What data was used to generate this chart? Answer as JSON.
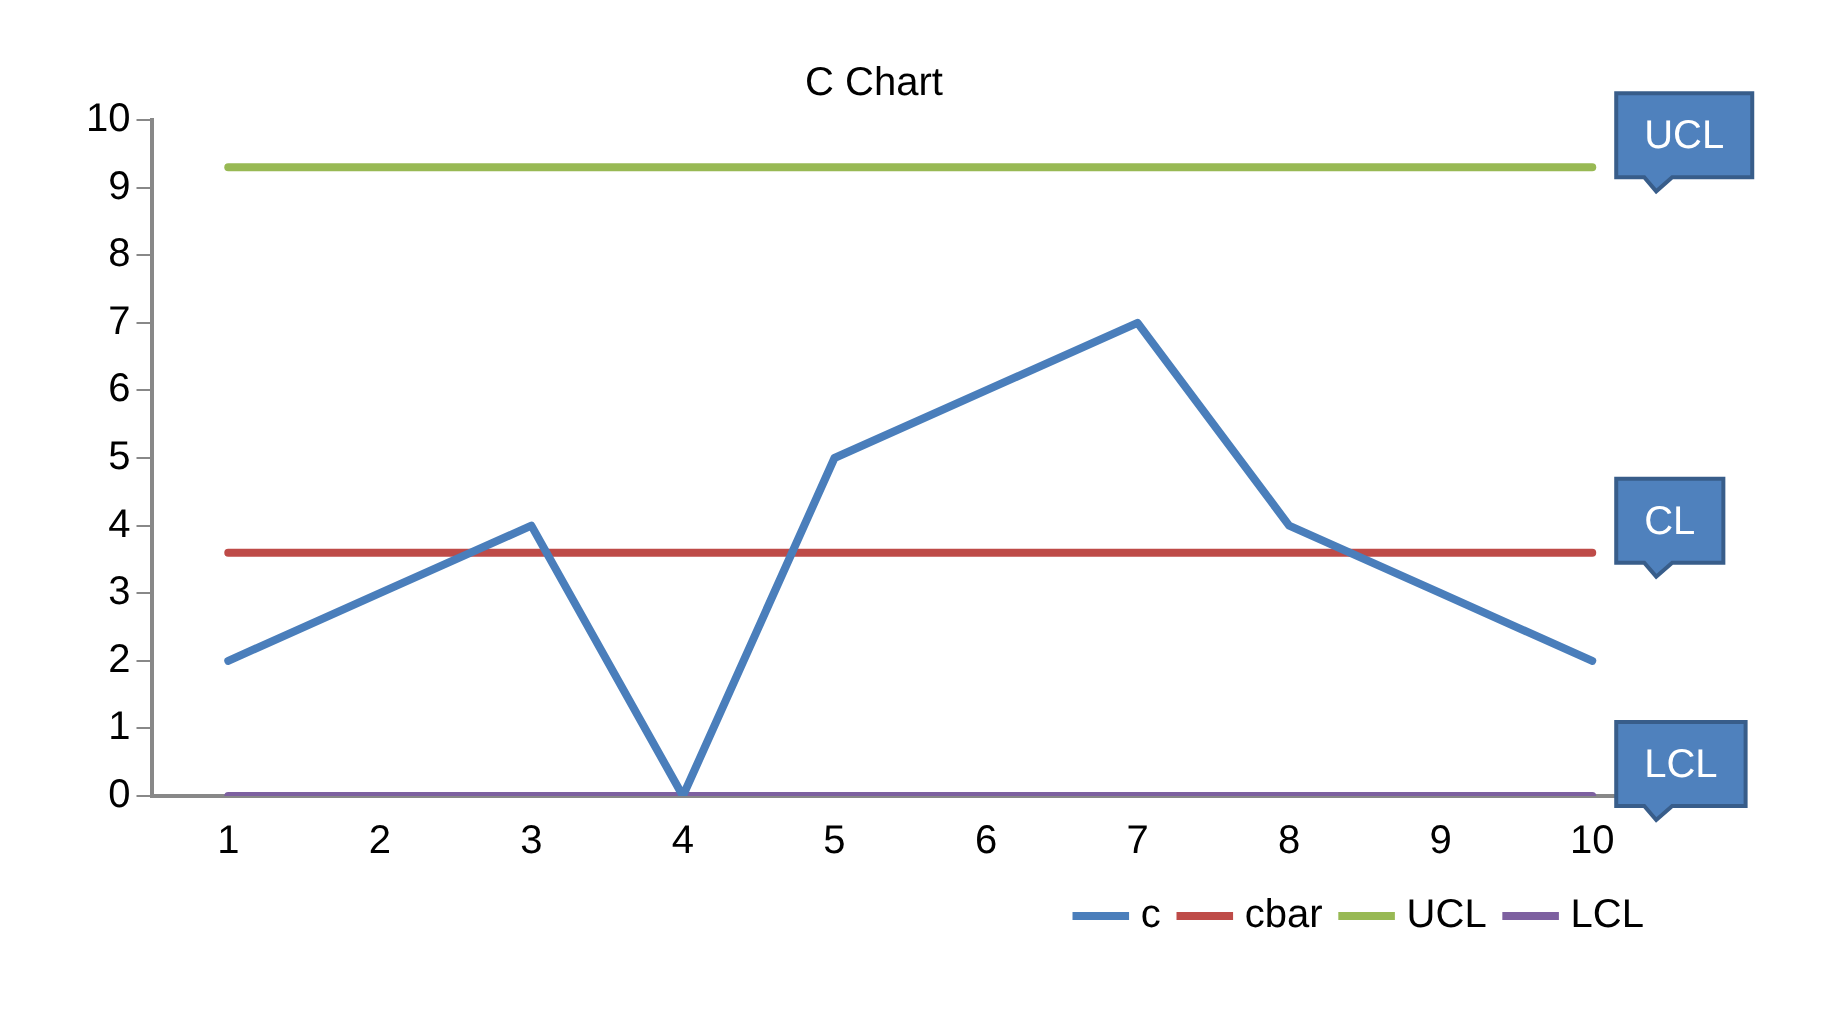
{
  "chart_data": {
    "type": "line",
    "title": "C Chart",
    "categories": [
      "1",
      "2",
      "3",
      "4",
      "5",
      "6",
      "7",
      "8",
      "9",
      "10"
    ],
    "series": [
      {
        "name": "c",
        "color": "#4a7ebb",
        "values": [
          2,
          3,
          4,
          0,
          5,
          6,
          7,
          4,
          3,
          2
        ]
      },
      {
        "name": "cbar",
        "color": "#be4b48",
        "values": [
          3.6,
          3.6,
          3.6,
          3.6,
          3.6,
          3.6,
          3.6,
          3.6,
          3.6,
          3.6
        ]
      },
      {
        "name": "UCL",
        "color": "#98b954",
        "values": [
          9.3,
          9.3,
          9.3,
          9.3,
          9.3,
          9.3,
          9.3,
          9.3,
          9.3,
          9.3
        ]
      },
      {
        "name": "LCL",
        "color": "#7d60a0",
        "values": [
          0,
          0,
          0,
          0,
          0,
          0,
          0,
          0,
          0,
          0
        ]
      }
    ],
    "ylim": [
      0,
      10
    ],
    "yticks": [
      0,
      1,
      2,
      3,
      4,
      5,
      6,
      7,
      8,
      9,
      10
    ],
    "legend": "bottom right",
    "marker": "none",
    "line_style": "solid",
    "grid": false,
    "annotations": [
      {
        "text": "UCL",
        "x": "10",
        "y": 9.3
      },
      {
        "text": "CL",
        "x": "10",
        "y": 3.6
      },
      {
        "text": "LCL",
        "x": "10",
        "y": 0
      }
    ]
  }
}
